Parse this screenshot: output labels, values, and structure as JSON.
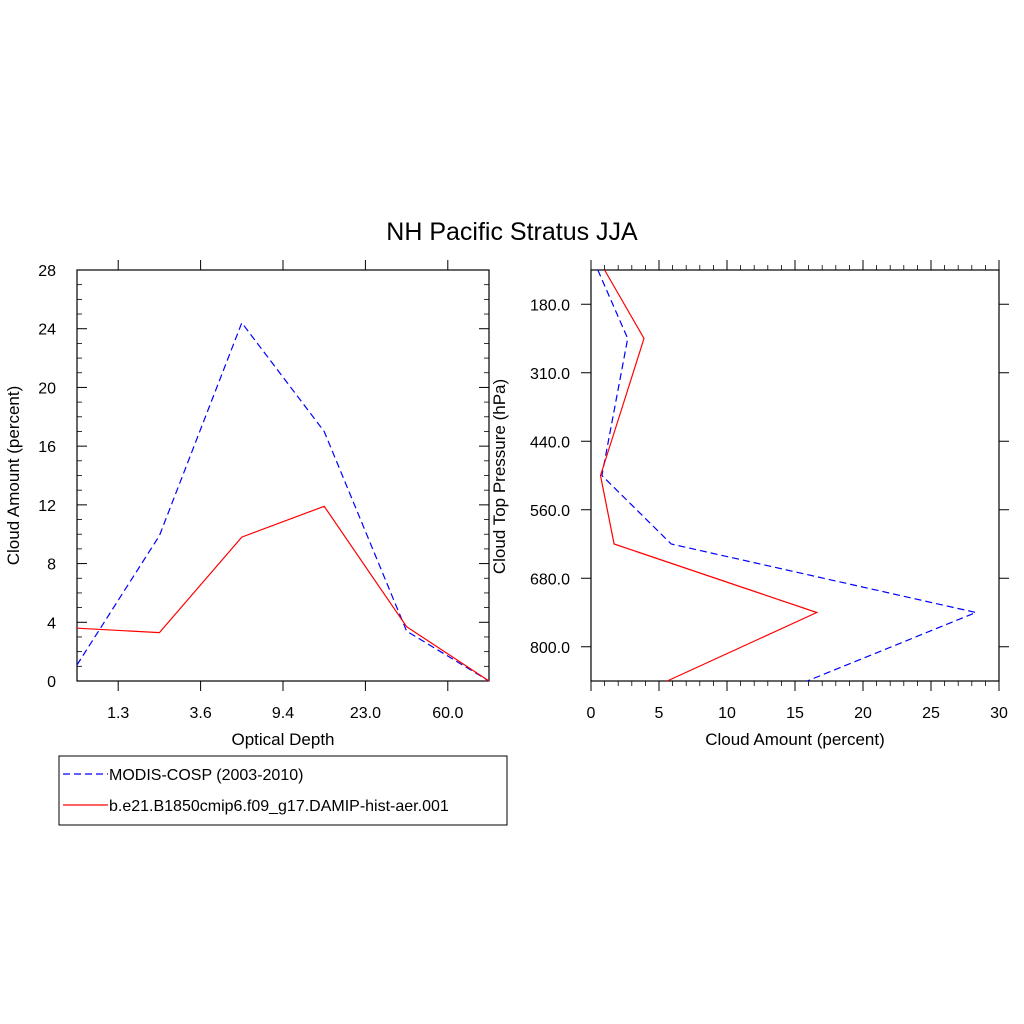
{
  "figure": {
    "title": "NH Pacific Stratus JJA"
  },
  "legend": {
    "entries": [
      {
        "label": "MODIS-COSP (2003-2010)",
        "color": "#0000ff",
        "dash": "dashed"
      },
      {
        "label": "b.e21.B1850cmip6.f09_g17.DAMIP-hist-aer.001",
        "color": "#ff0000",
        "dash": "solid"
      }
    ]
  },
  "chart_data": [
    {
      "type": "line",
      "title": "",
      "xlabel": "Optical Depth",
      "ylabel": "Cloud Amount (percent)",
      "x_positions": [
        0,
        1,
        2,
        3,
        4,
        5
      ],
      "x_tick_labels": [
        "1.3",
        "3.6",
        "9.4",
        "23.0",
        "60.0"
      ],
      "x_tick_positions": [
        0.5,
        1.5,
        2.5,
        3.5,
        4.5
      ],
      "xlim": [
        0,
        5
      ],
      "ylim": [
        0,
        28
      ],
      "y_ticks": [
        0,
        4,
        8,
        12,
        16,
        20,
        24,
        28
      ],
      "series": [
        {
          "name": "MODIS-COSP (2003-2010)",
          "color": "#0000ff",
          "dash": "dashed",
          "x": [
            0,
            1,
            2,
            3,
            4,
            5
          ],
          "values": [
            1.1,
            9.9,
            24.4,
            17.0,
            3.4,
            0.0
          ]
        },
        {
          "name": "b.e21.B1850cmip6.f09_g17.DAMIP-hist-aer.001",
          "color": "#ff0000",
          "dash": "solid",
          "x": [
            0,
            1,
            2,
            3,
            4,
            5
          ],
          "values": [
            3.6,
            3.3,
            9.8,
            11.9,
            3.7,
            0.0
          ]
        }
      ]
    },
    {
      "type": "line",
      "title": "",
      "xlabel": "Cloud Amount (percent)",
      "ylabel": "Cloud Top Pressure (hPa)",
      "xlim": [
        0,
        30
      ],
      "x_ticks": [
        0,
        5,
        10,
        15,
        20,
        25,
        30
      ],
      "y_positions": [
        0,
        1,
        2,
        3,
        4,
        5,
        6
      ],
      "y_tick_labels": [
        "180.0",
        "310.0",
        "440.0",
        "560.0",
        "680.0",
        "800.0"
      ],
      "y_tick_positions": [
        0.5,
        1.5,
        2.5,
        3.5,
        4.5,
        5.5
      ],
      "ylim": [
        0,
        6
      ],
      "series": [
        {
          "name": "MODIS-COSP (2003-2010)",
          "color": "#0000ff",
          "dash": "dashed",
          "x": [
            0.5,
            2.7,
            0.8,
            5.9,
            28.3,
            15.9
          ],
          "y": [
            0,
            1,
            3,
            4,
            5,
            6
          ]
        },
        {
          "name": "b.e21.B1850cmip6.f09_g17.DAMIP-hist-aer.001",
          "color": "#ff0000",
          "dash": "solid",
          "x": [
            1.0,
            3.9,
            2.3,
            0.7,
            1.7,
            16.6,
            5.6
          ],
          "y": [
            0,
            1,
            2,
            3,
            4,
            5,
            6
          ]
        }
      ]
    }
  ]
}
